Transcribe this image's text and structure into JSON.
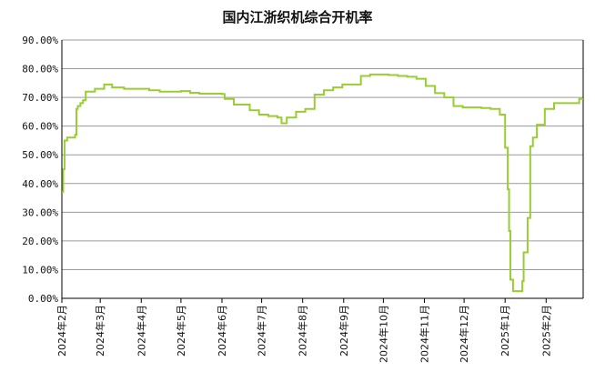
{
  "chart_data": {
    "type": "line",
    "title": "国内江浙织机综合开机率",
    "xlabel": "",
    "ylabel": "",
    "ylim": [
      0,
      90
    ],
    "y_ticks": [
      "0.00%",
      "10.00%",
      "20.00%",
      "30.00%",
      "40.00%",
      "50.00%",
      "60.00%",
      "70.00%",
      "80.00%",
      "90.00%"
    ],
    "x_ticks": [
      "2024年2月",
      "2024年3月",
      "2024年4月",
      "2024年5月",
      "2024年6月",
      "2024年7月",
      "2024年8月",
      "2024年9月",
      "2024年10月",
      "2024年11月",
      "2024年12月",
      "2025年1月",
      "2025年2月"
    ],
    "x_range": [
      "2024-02-01",
      "2025-03-01"
    ],
    "grid": "horizontal",
    "line_color": "#9acd32",
    "series": [
      {
        "step": true,
        "points": [
          [
            "2024-02-01",
            37
          ],
          [
            "2024-02-02",
            45
          ],
          [
            "2024-02-03",
            55
          ],
          [
            "2024-02-05",
            56
          ],
          [
            "2024-02-09",
            56
          ],
          [
            "2024-02-11",
            57
          ],
          [
            "2024-02-12",
            66
          ],
          [
            "2024-02-13",
            67
          ],
          [
            "2024-02-15",
            68
          ],
          [
            "2024-02-17",
            69
          ],
          [
            "2024-02-19",
            72
          ],
          [
            "2024-02-26",
            73
          ],
          [
            "2024-03-04",
            74.5
          ],
          [
            "2024-03-10",
            73.5
          ],
          [
            "2024-03-19",
            73
          ],
          [
            "2024-04-07",
            72.5
          ],
          [
            "2024-04-15",
            72
          ],
          [
            "2024-05-01",
            72.2
          ],
          [
            "2024-05-08",
            71.6
          ],
          [
            "2024-05-15",
            71.3
          ],
          [
            "2024-06-01",
            71.2
          ],
          [
            "2024-06-03",
            69.5
          ],
          [
            "2024-06-10",
            67.5
          ],
          [
            "2024-06-22",
            65.5
          ],
          [
            "2024-06-29",
            64
          ],
          [
            "2024-07-06",
            63.5
          ],
          [
            "2024-07-13",
            63
          ],
          [
            "2024-07-16",
            61
          ],
          [
            "2024-07-20",
            63
          ],
          [
            "2024-07-27",
            65
          ],
          [
            "2024-08-03",
            66
          ],
          [
            "2024-08-10",
            71
          ],
          [
            "2024-08-17",
            72.5
          ],
          [
            "2024-08-24",
            73.5
          ],
          [
            "2024-08-31",
            74.5
          ],
          [
            "2024-09-14",
            77.5
          ],
          [
            "2024-09-21",
            78
          ],
          [
            "2024-10-05",
            77.8
          ],
          [
            "2024-10-12",
            77.5
          ],
          [
            "2024-10-19",
            77.2
          ],
          [
            "2024-10-26",
            76.5
          ],
          [
            "2024-11-02",
            74
          ],
          [
            "2024-11-09",
            71.5
          ],
          [
            "2024-11-16",
            70
          ],
          [
            "2024-11-23",
            67
          ],
          [
            "2024-11-30",
            66.5
          ],
          [
            "2024-12-14",
            66.3
          ],
          [
            "2024-12-21",
            66
          ],
          [
            "2024-12-28",
            64
          ],
          [
            "2025-01-01",
            52.5
          ],
          [
            "2025-01-03",
            38
          ],
          [
            "2025-01-04",
            23.5
          ],
          [
            "2025-01-05",
            6.5
          ],
          [
            "2025-01-07",
            2.5
          ],
          [
            "2025-01-14",
            6
          ],
          [
            "2025-01-15",
            16
          ],
          [
            "2025-01-18",
            28
          ],
          [
            "2025-01-20",
            53
          ],
          [
            "2025-01-22",
            56
          ],
          [
            "2025-01-25",
            60.5
          ],
          [
            "2025-01-31",
            66
          ],
          [
            "2025-02-07",
            68
          ],
          [
            "2025-02-21",
            68
          ],
          [
            "2025-02-26",
            69.5
          ]
        ]
      }
    ]
  }
}
